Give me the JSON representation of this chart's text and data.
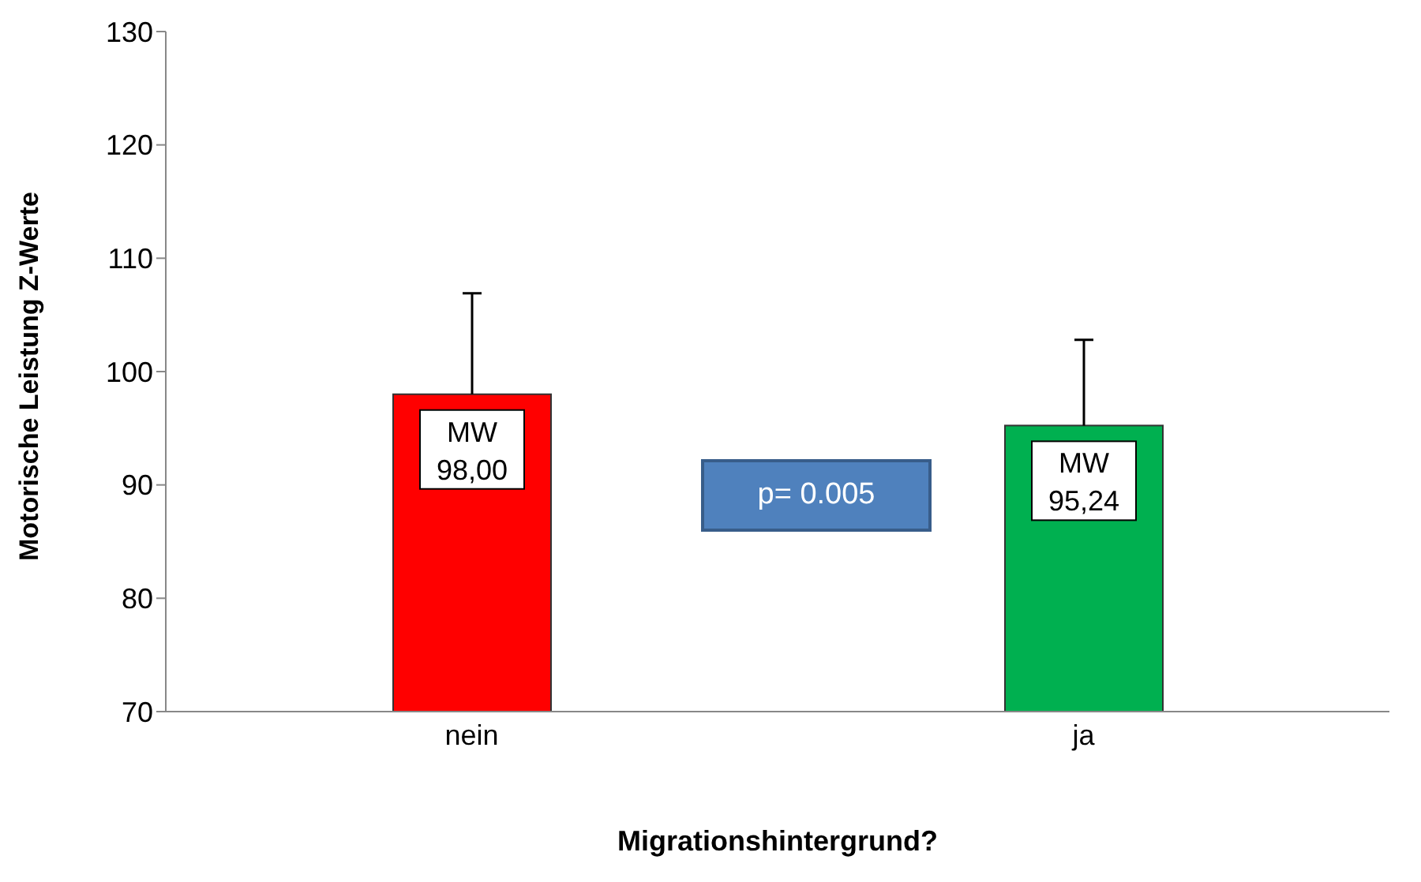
{
  "chart_data": {
    "type": "bar",
    "xlabel": "Migrationshintergrund?",
    "ylabel": "Motorische Leistung Z-Werte",
    "categories": [
      "nein",
      "ja"
    ],
    "values": [
      98.0,
      95.24
    ],
    "colors": [
      "#ff0000",
      "#00b050"
    ],
    "errors": [
      [
        98.0,
        106.9
      ],
      [
        95.24,
        102.8
      ]
    ],
    "value_labels": [
      "MW 98,00",
      "MW 95,24"
    ],
    "ylim": [
      70,
      130
    ],
    "yticks": [
      70,
      80,
      90,
      100,
      110,
      120,
      130
    ],
    "grid": false,
    "legend": false,
    "annotations": [
      "p= 0.005"
    ]
  }
}
